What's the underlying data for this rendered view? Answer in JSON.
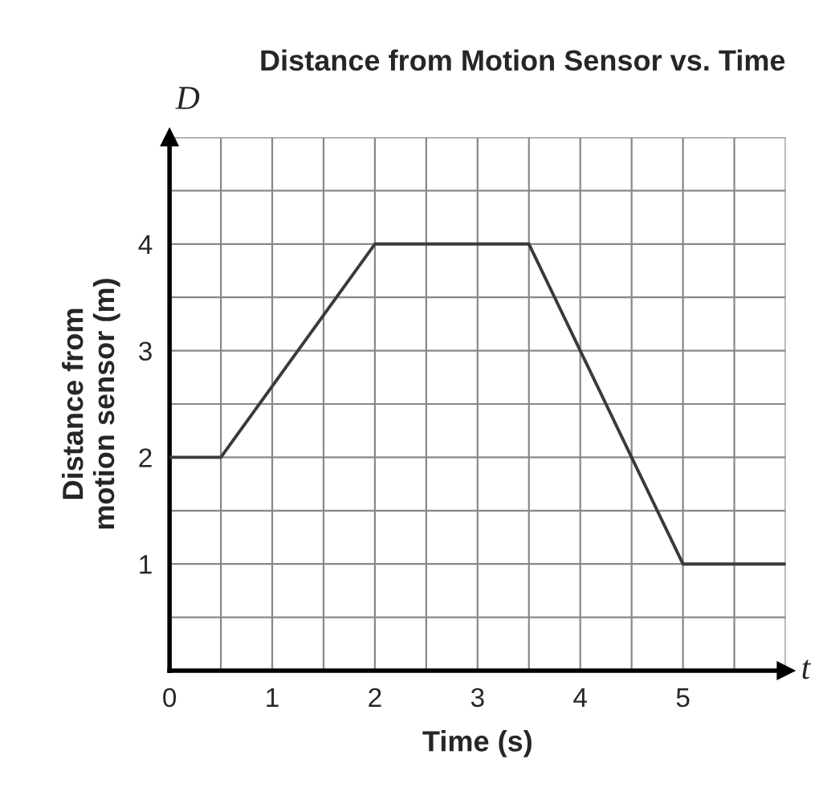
{
  "chart_data": {
    "type": "line",
    "title": "Distance from Motion Sensor vs. Time",
    "xlabel": "Time (s)",
    "ylabel": "Distance from\nmotion sensor (m)",
    "x": [
      0,
      0.5,
      2,
      3.5,
      5,
      6
    ],
    "series": [
      {
        "color": "#3a3a3a",
        "values": [
          2,
          2,
          4,
          4,
          1,
          1
        ]
      }
    ],
    "xlim": [
      0,
      6
    ],
    "ylim": [
      0,
      5
    ],
    "xticks": [
      0,
      1,
      2,
      3,
      4,
      5
    ],
    "yticks": [
      1,
      2,
      3,
      4
    ],
    "grid": true,
    "marker": "none",
    "line_style": "solid",
    "annotations": [
      "D",
      "t"
    ]
  }
}
